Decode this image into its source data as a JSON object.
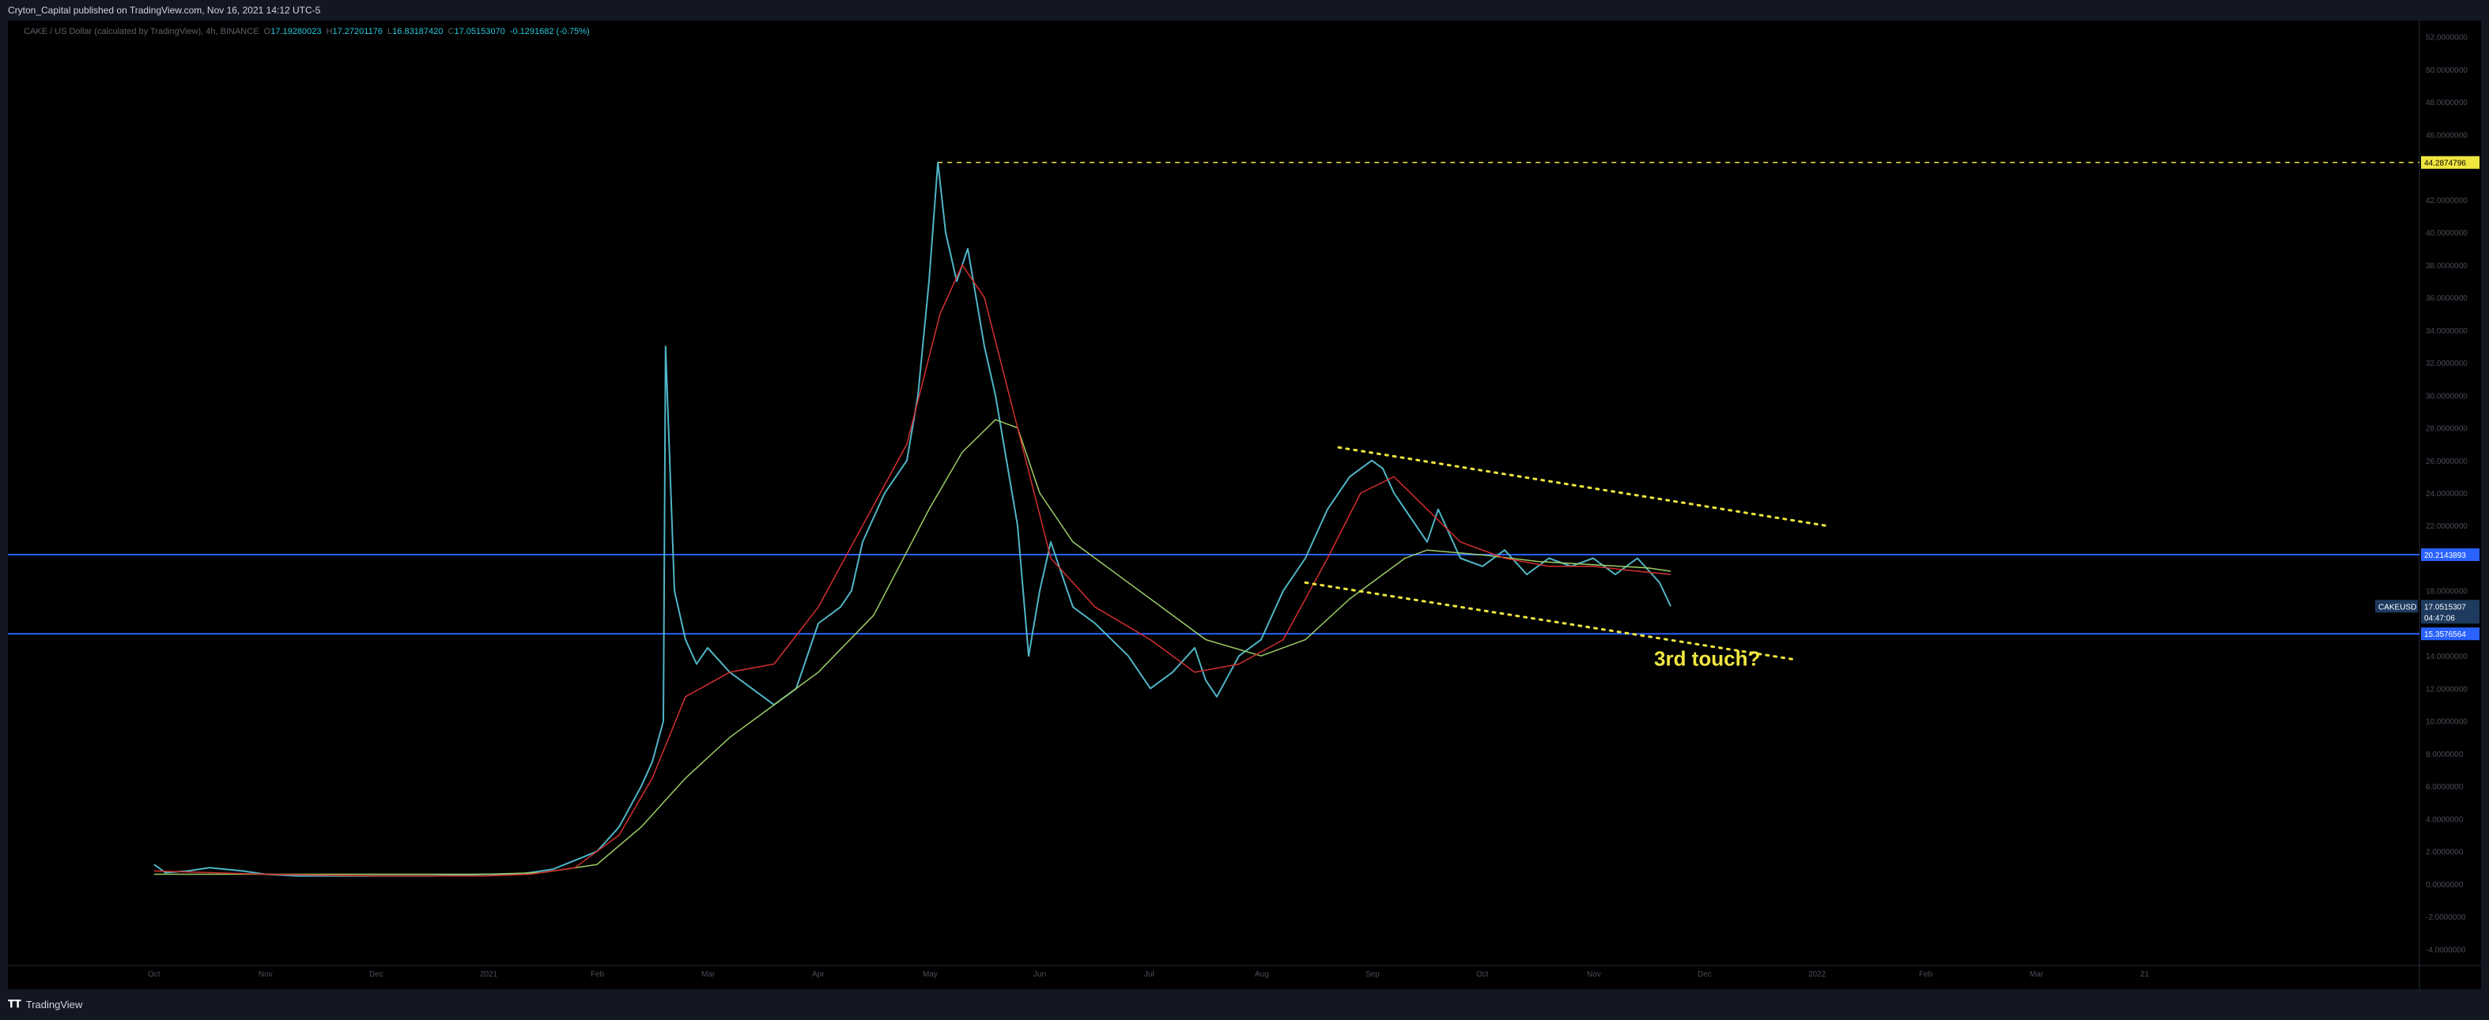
{
  "header": {
    "published": "Cryton_Capital published on TradingView.com, Nov 16, 2021 14:12 UTC-5"
  },
  "symbol_line": {
    "name": "CAKE / US Dollar (calculated by TradingView), 4h, BINANCE",
    "o": "17.19280023",
    "h": "17.27201176",
    "l": "16.83187420",
    "c": "17.05153070",
    "change": "-0.1291682 (-0.75%)"
  },
  "footer": {
    "brand": "TradingView"
  },
  "colors": {
    "background": "#000000",
    "candles": "#4fb5c6",
    "ema_fast": "#d32f2f",
    "ema_slow": "#9ccc65",
    "h_line": "#2962ff",
    "dotted": "#f0e640",
    "price_tag": "#1e3a5f"
  },
  "chart_data": {
    "type": "line",
    "symbol": "CAKEUSD",
    "interval": "4h",
    "x_ticks": [
      "Oct",
      "Nov",
      "Dec",
      "2021",
      "Feb",
      "Mar",
      "Apr",
      "May",
      "Jun",
      "Jul",
      "Aug",
      "Sep",
      "Oct",
      "Nov",
      "Dec",
      "2022",
      "Feb",
      "Mar",
      "21"
    ],
    "y_ticks": [
      "52.0000000",
      "50.0000000",
      "48.0000000",
      "46.0000000",
      "42.0000000",
      "40.0000000",
      "38.0000000",
      "36.0000000",
      "34.0000000",
      "32.0000000",
      "30.0000000",
      "28.0000000",
      "26.0000000",
      "24.0000000",
      "22.0000000",
      "18.0000000",
      "14.0000000",
      "12.0000000",
      "10.0000000",
      "8.0000000",
      "6.0000000",
      "4.0000000",
      "2.0000000",
      "0.0000000",
      "-2.0000000",
      "-4.0000000"
    ],
    "y_tick_values": [
      52,
      50,
      48,
      46,
      42,
      40,
      38,
      36,
      34,
      32,
      30,
      28,
      26,
      24,
      22,
      18,
      14,
      12,
      10,
      8,
      6,
      4,
      2,
      0,
      -2,
      -4
    ],
    "ylim": [
      -5,
      53
    ],
    "x_range_months": [
      0,
      18.3
    ],
    "price_series": {
      "name": "CAKEUSD",
      "x": [
        0,
        0.1,
        0.3,
        0.5,
        0.8,
        1.0,
        1.3,
        1.6,
        2.0,
        2.5,
        3.0,
        3.3,
        3.6,
        4.0,
        4.2,
        4.4,
        4.5,
        4.6,
        4.62,
        4.7,
        4.8,
        4.9,
        5.0,
        5.2,
        5.4,
        5.6,
        5.8,
        6.0,
        6.2,
        6.3,
        6.4,
        6.6,
        6.8,
        6.9,
        7.0,
        7.08,
        7.15,
        7.25,
        7.35,
        7.5,
        7.6,
        7.7,
        7.8,
        7.9,
        8.0,
        8.1,
        8.3,
        8.5,
        8.8,
        9.0,
        9.2,
        9.4,
        9.5,
        9.6,
        9.8,
        10.0,
        10.2,
        10.4,
        10.6,
        10.8,
        11.0,
        11.1,
        11.2,
        11.35,
        11.5,
        11.6,
        11.8,
        12.0,
        12.2,
        12.4,
        12.6,
        12.8,
        13.0,
        13.2,
        13.4,
        13.6,
        13.7
      ],
      "values": [
        1.2,
        0.7,
        0.8,
        1.0,
        0.8,
        0.6,
        0.5,
        0.5,
        0.5,
        0.5,
        0.6,
        0.6,
        0.9,
        2.0,
        3.5,
        6.0,
        7.5,
        10,
        33,
        18,
        15,
        13.5,
        14.5,
        13,
        12,
        11,
        12,
        16,
        17,
        18,
        21,
        24,
        26,
        30,
        37,
        44.3,
        40,
        37,
        39,
        33,
        30,
        26,
        22,
        14,
        18,
        21,
        17,
        16,
        14,
        12,
        13,
        14.5,
        12.5,
        11.5,
        14,
        15,
        18,
        20,
        23,
        25,
        26,
        25.5,
        24,
        22.5,
        21,
        23,
        20,
        19.5,
        20.5,
        19,
        20,
        19.5,
        20,
        19,
        20,
        18.5,
        17.05
      ]
    },
    "ema_fast": {
      "x": [
        0,
        1.0,
        2.0,
        3.0,
        3.4,
        3.8,
        4.2,
        4.5,
        4.8,
        5.2,
        5.6,
        6.0,
        6.4,
        6.8,
        7.1,
        7.3,
        7.5,
        7.8,
        8.1,
        8.5,
        9.0,
        9.4,
        9.8,
        10.2,
        10.6,
        10.9,
        11.2,
        11.5,
        11.8,
        12.2,
        12.6,
        13.0,
        13.4,
        13.7
      ],
      "values": [
        0.8,
        0.6,
        0.5,
        0.5,
        0.6,
        1.0,
        3.0,
        6.5,
        11.5,
        13,
        13.5,
        17,
        22,
        27,
        35,
        38,
        36,
        28,
        20,
        17,
        15,
        13,
        13.5,
        15,
        20,
        24,
        25,
        23,
        21,
        20,
        19.5,
        19.5,
        19.2,
        19
      ]
    },
    "ema_slow": {
      "x": [
        0,
        1.0,
        2.0,
        3.0,
        3.5,
        4.0,
        4.4,
        4.8,
        5.2,
        5.6,
        6.0,
        6.5,
        7.0,
        7.3,
        7.6,
        7.8,
        8.0,
        8.3,
        8.6,
        9.0,
        9.5,
        10.0,
        10.4,
        10.8,
        11.1,
        11.3,
        11.5,
        12.0,
        12.5,
        13.0,
        13.5,
        13.7
      ],
      "values": [
        0.6,
        0.6,
        0.6,
        0.6,
        0.7,
        1.2,
        3.5,
        6.5,
        9,
        11,
        13,
        16.5,
        23,
        26.5,
        28.5,
        28,
        24,
        21,
        19.5,
        17.5,
        15,
        14,
        15,
        17.5,
        19,
        20,
        20.5,
        20.2,
        19.8,
        19.6,
        19.4,
        19.2
      ]
    },
    "levels": [
      {
        "label": "44.2874796",
        "value": 44.2874796,
        "style": "dashed-yellow"
      },
      {
        "label": "20.2143893",
        "value": 20.2143893,
        "style": "blue"
      },
      {
        "label": "15.3576564",
        "value": 15.3576564,
        "style": "blue"
      }
    ],
    "trendlines": [
      {
        "x": [
          10.7,
          15.1
        ],
        "values": [
          26.8,
          22.0
        ]
      },
      {
        "x": [
          10.4,
          14.8
        ],
        "values": [
          18.5,
          13.8
        ]
      }
    ],
    "last_price": {
      "symbol": "CAKEUSD",
      "value": "17.0515307",
      "countdown": "04:47:06"
    },
    "annotation": "3rd touch?"
  }
}
